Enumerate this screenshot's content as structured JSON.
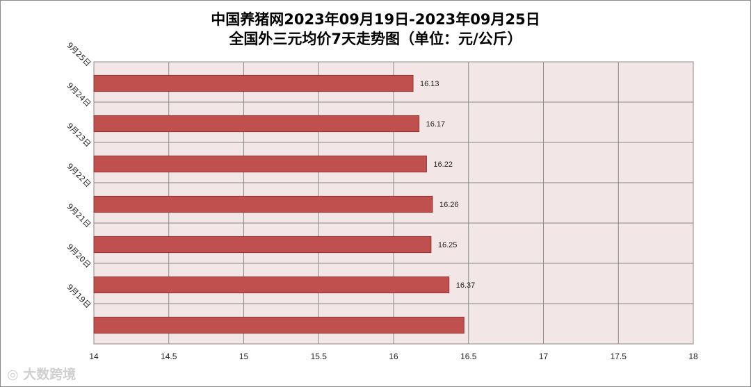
{
  "chart_data": {
    "type": "bar",
    "orientation": "horizontal",
    "title_line1": "中国养猪网2023年09月19日-2023年09月25日",
    "title_line2": "全国外三元均价7天走势图（单位：元/公斤）",
    "categories": [
      "9月25日",
      "9月24日",
      "9月23日",
      "9月22日",
      "9月21日",
      "9月20日",
      "9月19日"
    ],
    "values": [
      16.13,
      16.17,
      16.22,
      16.26,
      16.25,
      16.37,
      16.47
    ],
    "data_labels": [
      "16.13",
      "16.17",
      "16.22",
      "16.26",
      "16.25",
      "16.37",
      ""
    ],
    "x_ticks": [
      "14",
      "14.5",
      "15",
      "15.5",
      "16",
      "16.5",
      "17",
      "17.5",
      "18"
    ],
    "xlim": [
      14,
      18
    ],
    "grid": true,
    "bar_color": "#c0504d",
    "bar_border_color": "#8c3836",
    "plot_background": "#f2e6e6"
  },
  "watermark": {
    "text": "大数跨境",
    "icon": "logo-icon"
  }
}
